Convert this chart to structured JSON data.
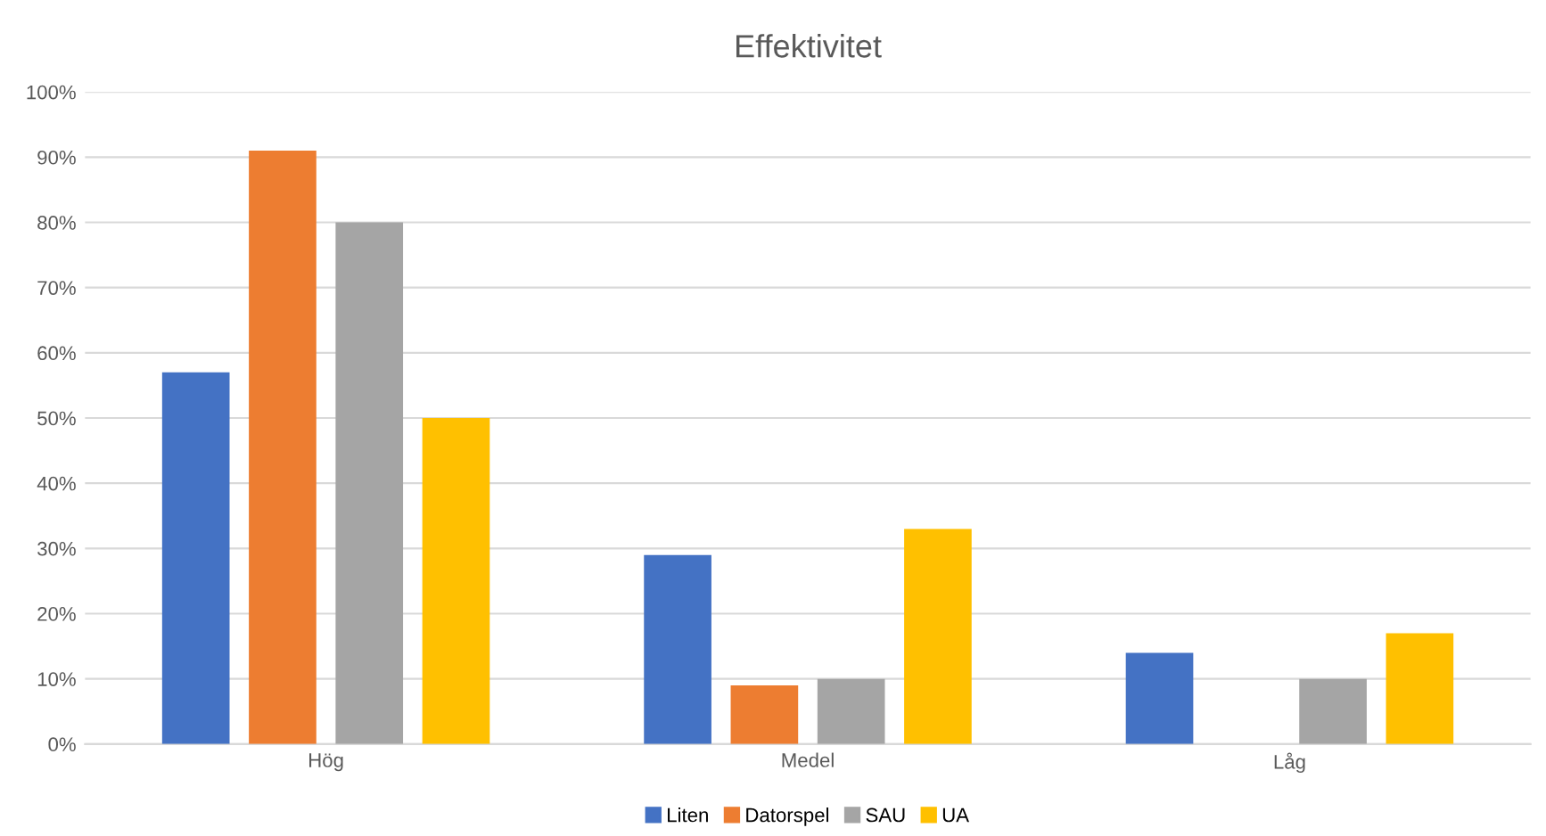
{
  "chart_data": {
    "type": "bar",
    "title": "Effektivitet",
    "categories": [
      "Hög",
      "Medel",
      "Låg"
    ],
    "series": [
      {
        "name": "Liten",
        "color": "#4472c4",
        "values": [
          57,
          29,
          14
        ]
      },
      {
        "name": "Datorspel",
        "color": "#ed7d31",
        "values": [
          91,
          9,
          0
        ]
      },
      {
        "name": "SAU",
        "color": "#a5a5a5",
        "values": [
          80,
          10,
          10
        ]
      },
      {
        "name": "UA",
        "color": "#ffc000",
        "values": [
          50,
          33,
          17
        ]
      }
    ],
    "ylim": [
      0,
      100
    ],
    "yticks": [
      {
        "value": 0,
        "label": "0%"
      },
      {
        "value": 10,
        "label": "10%"
      },
      {
        "value": 20,
        "label": "20%"
      },
      {
        "value": 30,
        "label": "30%"
      },
      {
        "value": 40,
        "label": "40%"
      },
      {
        "value": 50,
        "label": "50%"
      },
      {
        "value": 60,
        "label": "60%"
      },
      {
        "value": 70,
        "label": "70%"
      },
      {
        "value": 80,
        "label": "80%"
      },
      {
        "value": 90,
        "label": "90%"
      },
      {
        "value": 100,
        "label": "100%"
      }
    ],
    "grid": "y",
    "legend": "bottom"
  }
}
